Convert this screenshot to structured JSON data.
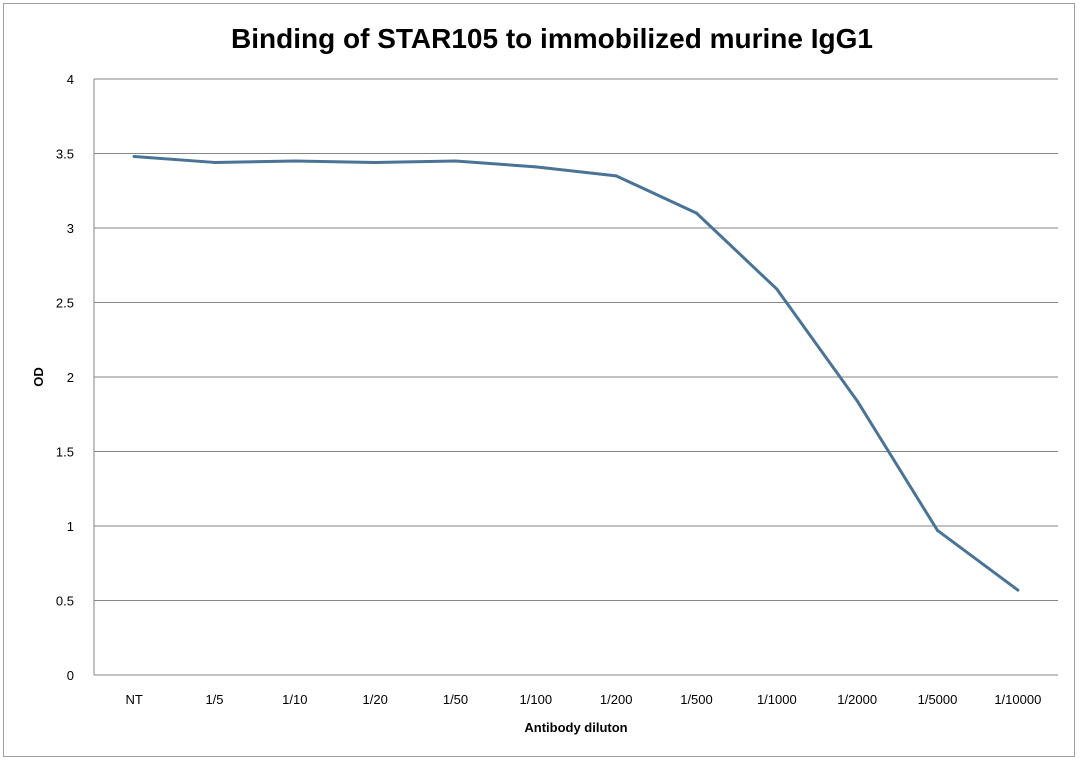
{
  "chart_data": {
    "type": "line",
    "title": "Binding of STAR105 to immobilized murine IgG1",
    "xlabel": "Antibody diluton",
    "ylabel": "OD",
    "categories": [
      "NT",
      "1/5",
      "1/10",
      "1/20",
      "1/50",
      "1/100",
      "1/200",
      "1/500",
      "1/1000",
      "1/2000",
      "1/5000",
      "1/10000"
    ],
    "series": [
      {
        "values": [
          3.48,
          3.44,
          3.45,
          3.44,
          3.45,
          3.41,
          3.35,
          3.1,
          2.59,
          1.84,
          0.97,
          0.57
        ]
      }
    ],
    "ylim": [
      0,
      4
    ],
    "yticks": [
      "0",
      "0.5",
      "1",
      "1.5",
      "2",
      "2.5",
      "3",
      "3.5",
      "4"
    ],
    "grid": true,
    "legend": "none",
    "line_color": "#4a7398"
  }
}
